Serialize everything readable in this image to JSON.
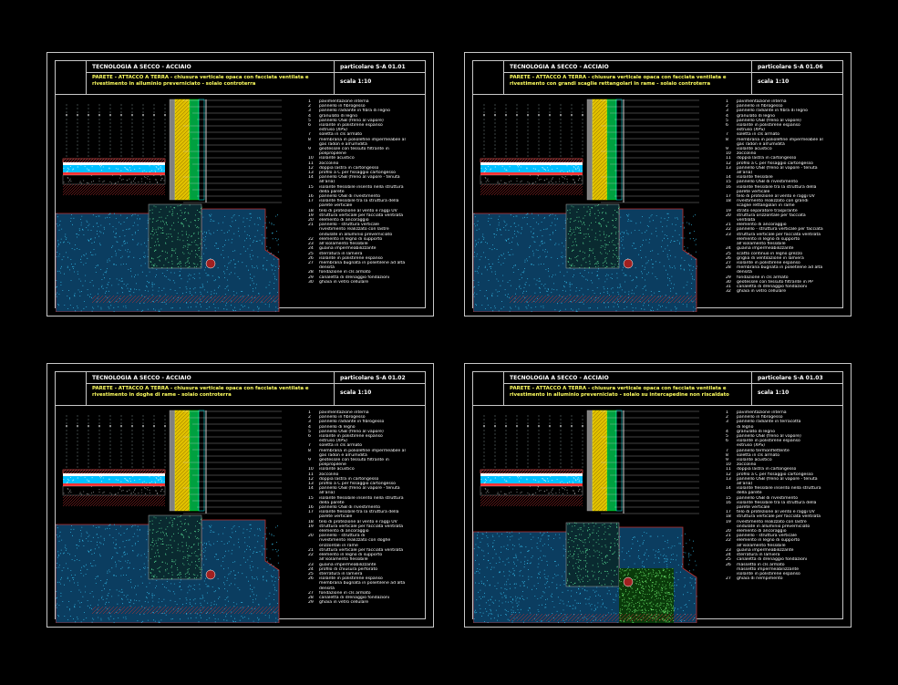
{
  "sheets": [
    {
      "header": "TECNOLOGIA A SECCO - ACCIAIO",
      "code": "particolare S-A 01.01",
      "title1": "PARETE - ATTACCO A TERRA - chiusura verticale opaca con facciata ventilata e",
      "title2": "rivestimento in alluminio preverniciato - solaio controterra",
      "scale": "scala 1:10",
      "legend": [
        [
          "1",
          "pavimentazione interna"
        ],
        [
          "2",
          "pannello in fibrogesso"
        ],
        [
          "3",
          "pannello radiante in fibra di legno"
        ],
        [
          "4",
          "granulato di legno"
        ],
        [
          "5",
          "pannello OSB (freno al vapore)"
        ],
        [
          "6",
          "isolante in polistirene espanso"
        ],
        [
          "",
          "estruso (XPS)"
        ],
        [
          "7",
          "soletta in cls armato"
        ],
        [
          "8",
          "membrana in poliolefine impermeabile al"
        ],
        [
          "",
          "gas radon e all'umidità"
        ],
        [
          "9",
          "geotessile con tessuto filtrante in"
        ],
        [
          "",
          "polipropilene"
        ],
        [
          "10",
          "isolante acustico"
        ],
        [
          "11",
          "zoccolino"
        ],
        [
          "12",
          "doppia lastra in cartongesso"
        ],
        [
          "13",
          "profilo a C per fissaggio cartongesso"
        ],
        [
          "14",
          "pannello OSB (freno al vapore - tenuta"
        ],
        [
          "",
          "all'aria)"
        ],
        [
          "15",
          "isolante flessibile inserito nella struttura"
        ],
        [
          "",
          "della parete"
        ],
        [
          "16",
          "pannello OSB di rivestimento"
        ],
        [
          "17",
          "isolante flessibile tra la struttura della"
        ],
        [
          "",
          "parete verticale"
        ],
        [
          "18",
          "telo di protezione al vento e raggi UV"
        ],
        [
          "19",
          "struttura verticale per facciata ventilata"
        ],
        [
          "20",
          "elemento di ancoraggio"
        ],
        [
          "21",
          "pannello - struttura verticale"
        ],
        [
          "",
          "rivestimento realizzato con lastre"
        ],
        [
          "",
          "ondulate in alluminio preverniciato"
        ],
        [
          "22",
          "elemento in legno di supporto"
        ],
        [
          "23",
          "all'isolamento flessibile"
        ],
        [
          "24",
          "guaina impermeabilizzante"
        ],
        [
          "25",
          "sterratura in lamiera"
        ],
        [
          "26",
          "isolante in polistirene espanso"
        ],
        [
          "27",
          "membrana bugnata in polietilene ad alta"
        ],
        [
          "",
          "densità"
        ],
        [
          "28",
          "fondazione in cls armato"
        ],
        [
          "29",
          "canaletta di drenaggio fondazioni"
        ],
        [
          "30",
          "ghiaia in vetro cellulare"
        ]
      ]
    },
    {
      "header": "TECNOLOGIA A SECCO - ACCIAIO",
      "code": "particolare S-A 01.06",
      "title1": "PARETE - ATTACCO A TERRA - chiusura verticale opaca con facciata ventilata e",
      "title2": "rivestimento con grandi scaglie rettangolari in rame - solaio controterra",
      "scale": "scala 1:10",
      "legend": [
        [
          "1",
          "pavimentazione interna"
        ],
        [
          "2",
          "pannello in fibrogesso"
        ],
        [
          "3",
          "pannello radiante in fibra di legno"
        ],
        [
          "4",
          "granulato di legno"
        ],
        [
          "5",
          "pannello OSB (freno al vapore)"
        ],
        [
          "6",
          "isolante in polistirene espanso"
        ],
        [
          "",
          "estruso (XPS)"
        ],
        [
          "7",
          "soletta in cls armato"
        ],
        [
          "8",
          "membrana in poliolefine impermeabile al"
        ],
        [
          "",
          "gas radon e all'umidità"
        ],
        [
          "9",
          "isolante acustico"
        ],
        [
          "10",
          "zoccolino"
        ],
        [
          "11",
          "doppia lastra in cartongesso"
        ],
        [
          "12",
          "profilo a C per fissaggio cartongesso"
        ],
        [
          "13",
          "pannello OSB (freno al vapore - tenuta"
        ],
        [
          "",
          "all'aria)"
        ],
        [
          "14",
          "isolante flessibile"
        ],
        [
          "15",
          "pannello OSB di rivestimento"
        ],
        [
          "16",
          "isolante flessibile tra la struttura della"
        ],
        [
          "",
          "parete verticale"
        ],
        [
          "17",
          "telo di protezione al vento e raggi UV"
        ],
        [
          "18",
          "rivestimento realizzato con grandi"
        ],
        [
          "",
          "scaglie rettangolari in rame"
        ],
        [
          "19",
          "strato separatore traspirante"
        ],
        [
          "20",
          "struttura orizzontale per facciata"
        ],
        [
          "",
          "ventilata"
        ],
        [
          "21",
          "elemento di ancoraggio"
        ],
        [
          "22",
          "pannello - struttura verticale per facciata"
        ],
        [
          "23",
          "struttura verticale per facciata ventilata"
        ],
        [
          "",
          "elemento in legno di supporto"
        ],
        [
          "",
          "all'isolamento flessibile"
        ],
        [
          "24",
          "guaina impermeabilizzante"
        ],
        [
          "25",
          "scatto continuo in legno grezzo"
        ],
        [
          "26",
          "griglia di ventilazione in lamiera"
        ],
        [
          "27",
          "isolante in polistirene espanso"
        ],
        [
          "28",
          "membrana bugnata in polietilene ad alta"
        ],
        [
          "",
          "densità"
        ],
        [
          "29",
          "fondazione in cls armato"
        ],
        [
          "30",
          "geotessile con tessuto filtrante in PP"
        ],
        [
          "31",
          "canaletta di drenaggio fondazioni"
        ],
        [
          "32",
          "ghiaia in vetro cellulare"
        ]
      ]
    },
    {
      "header": "TECNOLOGIA A SECCO - ACCIAIO",
      "code": "particolare S-A 01.02",
      "title1": "PARETE - ATTACCO A TERRA - chiusura verticale opaca con facciata ventilata e",
      "title2": "rivestimento in doghe di rame - solaio controterra",
      "scale": "scala 1:10",
      "legend": [
        [
          "1",
          "pavimentazione interna"
        ],
        [
          "2",
          "pannello in fibrogesso"
        ],
        [
          "3",
          "pannello radiante in fibrogesso"
        ],
        [
          "4",
          "pannello di legno"
        ],
        [
          "5",
          "pannello OSB (freno al vapore)"
        ],
        [
          "6",
          "isolante in polistirene espanso"
        ],
        [
          "",
          "estruso (XPS)"
        ],
        [
          "7",
          "soletta in cls armato"
        ],
        [
          "8",
          "membrana in poliolefine impermeabile al"
        ],
        [
          "",
          "gas radon e all'umidità"
        ],
        [
          "9",
          "geotessile con tessuto filtrante in"
        ],
        [
          "",
          "polipropilene"
        ],
        [
          "10",
          "isolante acustico"
        ],
        [
          "11",
          "zoccolino"
        ],
        [
          "12",
          "doppia lastra in cartongesso"
        ],
        [
          "13",
          "profilo a C per fissaggio cartongesso"
        ],
        [
          "14",
          "pannello OSB (freno al vapore - tenuta"
        ],
        [
          "",
          "all'aria)"
        ],
        [
          "15",
          "isolante flessibile inserito nella struttura"
        ],
        [
          "",
          "della parete"
        ],
        [
          "16",
          "pannello OSB di rivestimento"
        ],
        [
          "17",
          "isolante flessibile tra la struttura della"
        ],
        [
          "",
          "parete verticale"
        ],
        [
          "18",
          "telo di protezione al vento e raggi UV"
        ],
        [
          "19",
          "struttura verticale per facciata ventilata"
        ],
        [
          "",
          "elemento di ancoraggio"
        ],
        [
          "20",
          "pannello - struttura di"
        ],
        [
          "",
          "rivestimento realizzato con doghe"
        ],
        [
          "",
          "orizzontali in rame"
        ],
        [
          "21",
          "struttura verticale per facciata ventilata"
        ],
        [
          "22",
          "elemento in legno di supporto"
        ],
        [
          "",
          "all'isolamento flessibile"
        ],
        [
          "23",
          "guaina impermeabilizzante"
        ],
        [
          "24",
          "profilo di chiusura perforato"
        ],
        [
          "25",
          "sterratura in lamiera"
        ],
        [
          "26",
          "isolante in polistirene espanso"
        ],
        [
          "",
          "membrana bugnata in polietilene ad alta"
        ],
        [
          "",
          "densità"
        ],
        [
          "27",
          "fondazione in cls armato"
        ],
        [
          "28",
          "canaletta di drenaggio fondazioni"
        ],
        [
          "29",
          "ghiaia in vetro cellulare"
        ]
      ]
    },
    {
      "header": "TECNOLOGIA A SECCO - ACCIAIO",
      "code": "particolare S-A 01.03",
      "title1": "PARETE - ATTACCO A TERRA - chiusura verticale opaca con facciata ventilata e",
      "title2": "rivestimento in alluminio preverniciato - solaio su intercapedine non riscaldato",
      "scale": "scala 1:10",
      "legend": [
        [
          "1",
          "pavimentazione interna"
        ],
        [
          "2",
          "pannello in fibrogesso"
        ],
        [
          "3",
          "pannello radiante in terracotta"
        ],
        [
          "",
          "di legno"
        ],
        [
          "4",
          "granulato di legno"
        ],
        [
          "5",
          "pannello OSB (freno al vapore)"
        ],
        [
          "6",
          "isolante in polistirene espanso"
        ],
        [
          "",
          "estruso (XPS)"
        ],
        [
          "7",
          "pannello termoriflettente"
        ],
        [
          "8",
          "soletta in cls armato"
        ],
        [
          "9",
          "isolante acustico"
        ],
        [
          "10",
          "zoccolino"
        ],
        [
          "11",
          "doppia lastra in cartongesso"
        ],
        [
          "12",
          "profilo a C per fissaggio cartongesso"
        ],
        [
          "13",
          "pannello OSB (freno al vapore - tenuta"
        ],
        [
          "",
          "all'aria)"
        ],
        [
          "14",
          "isolante flessibile inserito nella struttura"
        ],
        [
          "",
          "della parete"
        ],
        [
          "15",
          "pannello OSB di rivestimento"
        ],
        [
          "16",
          "isolante flessibile tra la struttura della"
        ],
        [
          "",
          "parete verticale"
        ],
        [
          "17",
          "telo di protezione al vento e raggi UV"
        ],
        [
          "18",
          "struttura verticale per facciata ventilata"
        ],
        [
          "19",
          "rivestimento realizzato con lastre"
        ],
        [
          "",
          "ondulate in alluminio preverniciato"
        ],
        [
          "20",
          "elemento di ancoraggio"
        ],
        [
          "21",
          "pannello - struttura verticale"
        ],
        [
          "22",
          "elemento in legno di supporto"
        ],
        [
          "",
          "all'isolamento flessibile"
        ],
        [
          "23",
          "guaina impermeabilizzante"
        ],
        [
          "24",
          "sterratura in lamiera"
        ],
        [
          "25",
          "canaletta di drenaggio fondazioni"
        ],
        [
          "26",
          "massetto in cls armato"
        ],
        [
          "",
          "massetto impermeabilizzante"
        ],
        [
          "",
          "isolante in polistirene espanso"
        ],
        [
          "27",
          "ghiaia di riempimento"
        ]
      ]
    }
  ]
}
